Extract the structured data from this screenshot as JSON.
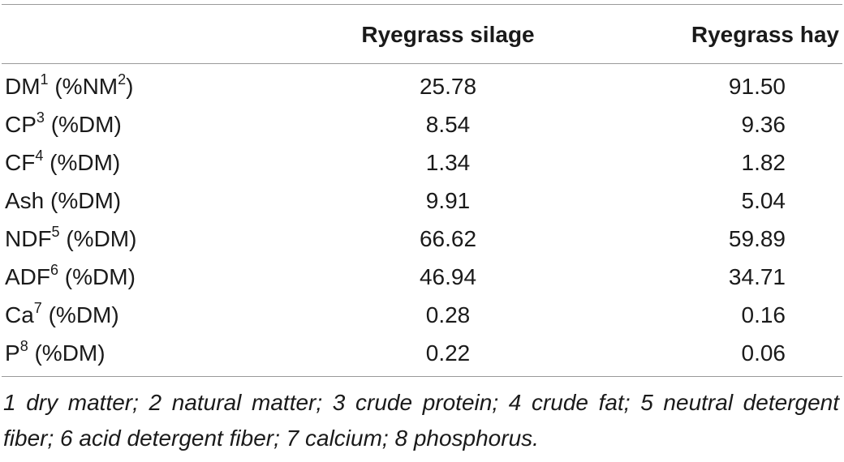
{
  "table": {
    "headers": {
      "label": "",
      "silage": "Ryegrass silage",
      "hay": "Ryegrass hay"
    },
    "rows": [
      {
        "name": "DM",
        "sup": "1",
        "unit": "(%NM",
        "unit_sup": "2",
        "unit_close": ")",
        "silage": "25.78",
        "hay": "91.50"
      },
      {
        "name": "CP",
        "sup": "3",
        "unit": "(%DM)",
        "unit_sup": "",
        "unit_close": "",
        "silage": "8.54",
        "hay": "9.36"
      },
      {
        "name": "CF",
        "sup": "4",
        "unit": "(%DM)",
        "unit_sup": "",
        "unit_close": "",
        "silage": "1.34",
        "hay": "1.82"
      },
      {
        "name": "Ash",
        "sup": "",
        "unit": "(%DM)",
        "unit_sup": "",
        "unit_close": "",
        "silage": "9.91",
        "hay": "5.04"
      },
      {
        "name": "NDF",
        "sup": "5",
        "unit": "(%DM)",
        "unit_sup": "",
        "unit_close": "",
        "silage": "66.62",
        "hay": "59.89"
      },
      {
        "name": "ADF",
        "sup": "6",
        "unit": "(%DM)",
        "unit_sup": "",
        "unit_close": "",
        "silage": "46.94",
        "hay": "34.71"
      },
      {
        "name": "Ca",
        "sup": "7",
        "unit": "(%DM)",
        "unit_sup": "",
        "unit_close": "",
        "silage": "0.28",
        "hay": "0.16"
      },
      {
        "name": "P",
        "sup": "8",
        "unit": "(%DM)",
        "unit_sup": "",
        "unit_close": "",
        "silage": "0.22",
        "hay": "0.06"
      }
    ],
    "footnote": "1 dry matter; 2 natural matter; 3 crude protein; 4 crude fat; 5 neutral detergent fiber; 6 acid detergent fiber; 7 calcium; 8 phosphorus."
  }
}
